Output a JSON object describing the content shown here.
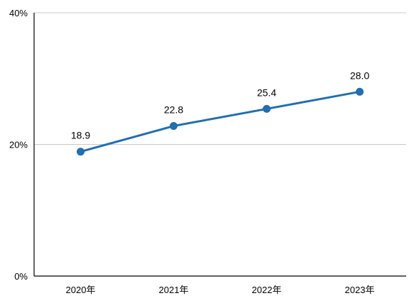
{
  "chart_data": {
    "type": "line",
    "title": "",
    "xlabel": "",
    "ylabel": "",
    "categories": [
      "2020年",
      "2021年",
      "2022年",
      "2023年"
    ],
    "series": [
      {
        "values": [
          18.9,
          22.8,
          25.4,
          28.0
        ],
        "value_labels": [
          "18.9",
          "22.8",
          "25.4",
          "28.0"
        ],
        "color": "#1f6fb2"
      }
    ],
    "ylim": [
      0,
      40
    ],
    "y_ticks": [
      0,
      20,
      40
    ],
    "y_tick_labels": [
      "0%",
      "20%",
      "40%"
    ],
    "grid": true,
    "grid_color": "#c8c8c8",
    "axis_color": "#000000",
    "legend": "none"
  }
}
